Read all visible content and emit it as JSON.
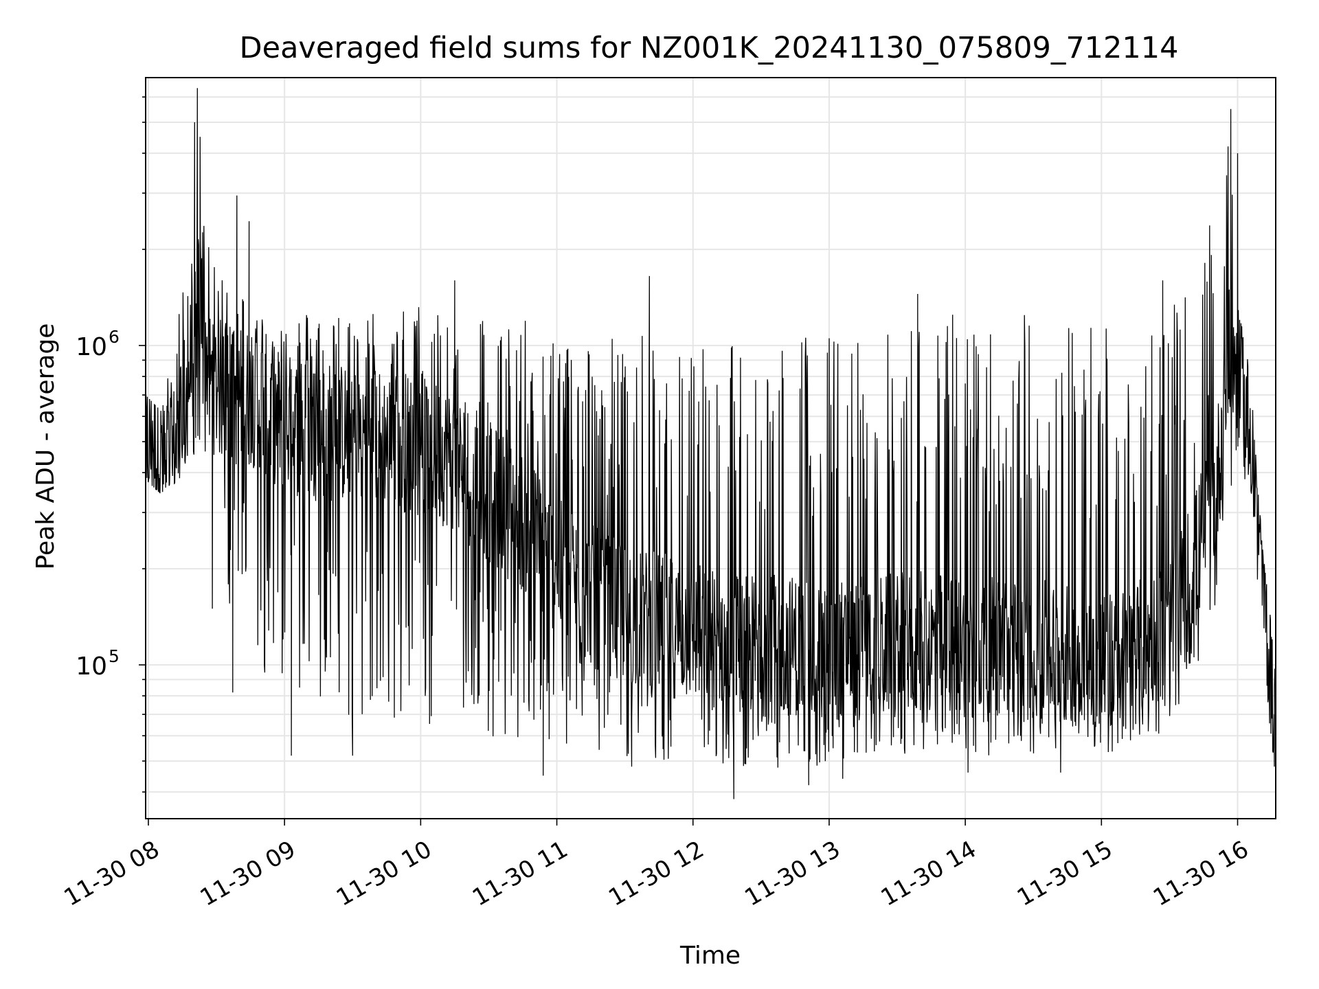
{
  "chart_data": {
    "type": "line",
    "title": "Deaveraged field sums for NZ001K_20241130_075809_712114",
    "xlabel": "Time",
    "ylabel": "Peak ADU - average",
    "yscale": "log",
    "ylim": [
      33000,
      6900000
    ],
    "xlim_hours": [
      7.98,
      16.28
    ],
    "grid": true,
    "line_color": "#000000",
    "x_ticks": [
      {
        "label": "11-30 08",
        "hour": 8
      },
      {
        "label": "11-30 09",
        "hour": 9
      },
      {
        "label": "11-30 10",
        "hour": 10
      },
      {
        "label": "11-30 11",
        "hour": 11
      },
      {
        "label": "11-30 12",
        "hour": 12
      },
      {
        "label": "11-30 13",
        "hour": 13
      },
      {
        "label": "11-30 14",
        "hour": 14
      },
      {
        "label": "11-30 15",
        "hour": 15
      },
      {
        "label": "11-30 16",
        "hour": 16
      }
    ],
    "y_ticks": [
      {
        "base": "10",
        "exp": "5",
        "value": 100000
      },
      {
        "base": "10",
        "exp": "6",
        "value": 1000000
      }
    ],
    "series": [
      {
        "name": "",
        "envelope": {
          "hours": [
            7.98,
            8.1,
            8.22,
            8.3,
            8.38,
            8.45,
            8.6,
            8.8,
            9.0,
            9.3,
            9.6,
            9.9,
            10.2,
            10.5,
            10.8,
            11.0,
            11.3,
            11.6,
            11.9,
            12.2,
            12.5,
            12.8,
            13.1,
            13.4,
            13.7,
            14.0,
            14.3,
            14.6,
            14.9,
            15.2,
            15.5,
            15.7,
            15.85,
            15.95,
            16.02,
            16.1,
            16.15,
            16.2,
            16.25,
            16.28
          ],
          "baseline": [
            520000,
            430000,
            480000,
            800000,
            1500000,
            780000,
            690000,
            690000,
            570000,
            540000,
            520000,
            500000,
            450000,
            350000,
            270000,
            200000,
            160000,
            140000,
            130000,
            120000,
            115000,
            115000,
            112000,
            115000,
            118000,
            115000,
            113000,
            110000,
            105000,
            105000,
            130000,
            220000,
            380000,
            1000000,
            720000,
            520000,
            250000,
            150000,
            90000,
            62000
          ],
          "min": [
            380000,
            340000,
            380000,
            420000,
            480000,
            360000,
            120000,
            90000,
            70000,
            70000,
            65000,
            65000,
            65000,
            60000,
            55000,
            52000,
            52000,
            50000,
            50000,
            48000,
            48000,
            47000,
            50000,
            52000,
            53000,
            52000,
            52000,
            52000,
            53000,
            53000,
            55000,
            90000,
            140000,
            300000,
            350000,
            350000,
            160000,
            100000,
            55000,
            50000
          ],
          "max": [
            700000,
            620000,
            1300000,
            2000000,
            6400000,
            1800000,
            1700000,
            1300000,
            1300000,
            1300000,
            1300000,
            1350000,
            1400000,
            1300000,
            1200000,
            1150000,
            1100000,
            1100000,
            1100000,
            1100000,
            1100000,
            1150000,
            1100000,
            1100000,
            1300000,
            1300000,
            1300000,
            1300000,
            1300000,
            1300000,
            1300000,
            1600000,
            3000000,
            5800000,
            1200000,
            900000,
            350000,
            200000,
            130000,
            90000
          ]
        },
        "highlights": [
          {
            "hour": 8.36,
            "value": 6400000
          },
          {
            "hour": 8.34,
            "value": 5000000
          },
          {
            "hour": 8.38,
            "value": 4500000
          },
          {
            "hour": 8.65,
            "value": 2950000
          },
          {
            "hour": 8.74,
            "value": 2450000
          },
          {
            "hour": 8.47,
            "value": 150000
          },
          {
            "hour": 8.62,
            "value": 82000
          },
          {
            "hour": 9.05,
            "value": 52000
          },
          {
            "hour": 9.5,
            "value": 52000
          },
          {
            "hour": 10.25,
            "value": 1600000
          },
          {
            "hour": 10.9,
            "value": 45000
          },
          {
            "hour": 11.68,
            "value": 1650000
          },
          {
            "hour": 11.55,
            "value": 48000
          },
          {
            "hour": 12.3,
            "value": 38000
          },
          {
            "hour": 12.85,
            "value": 42000
          },
          {
            "hour": 13.1,
            "value": 44000
          },
          {
            "hour": 13.65,
            "value": 1450000
          },
          {
            "hour": 14.02,
            "value": 46000
          },
          {
            "hour": 14.7,
            "value": 46000
          },
          {
            "hour": 15.45,
            "value": 1600000
          },
          {
            "hour": 15.95,
            "value": 5500000
          },
          {
            "hour": 15.93,
            "value": 4200000
          },
          {
            "hour": 16.0,
            "value": 4000000
          },
          {
            "hour": 16.27,
            "value": 48000
          }
        ]
      }
    ]
  }
}
